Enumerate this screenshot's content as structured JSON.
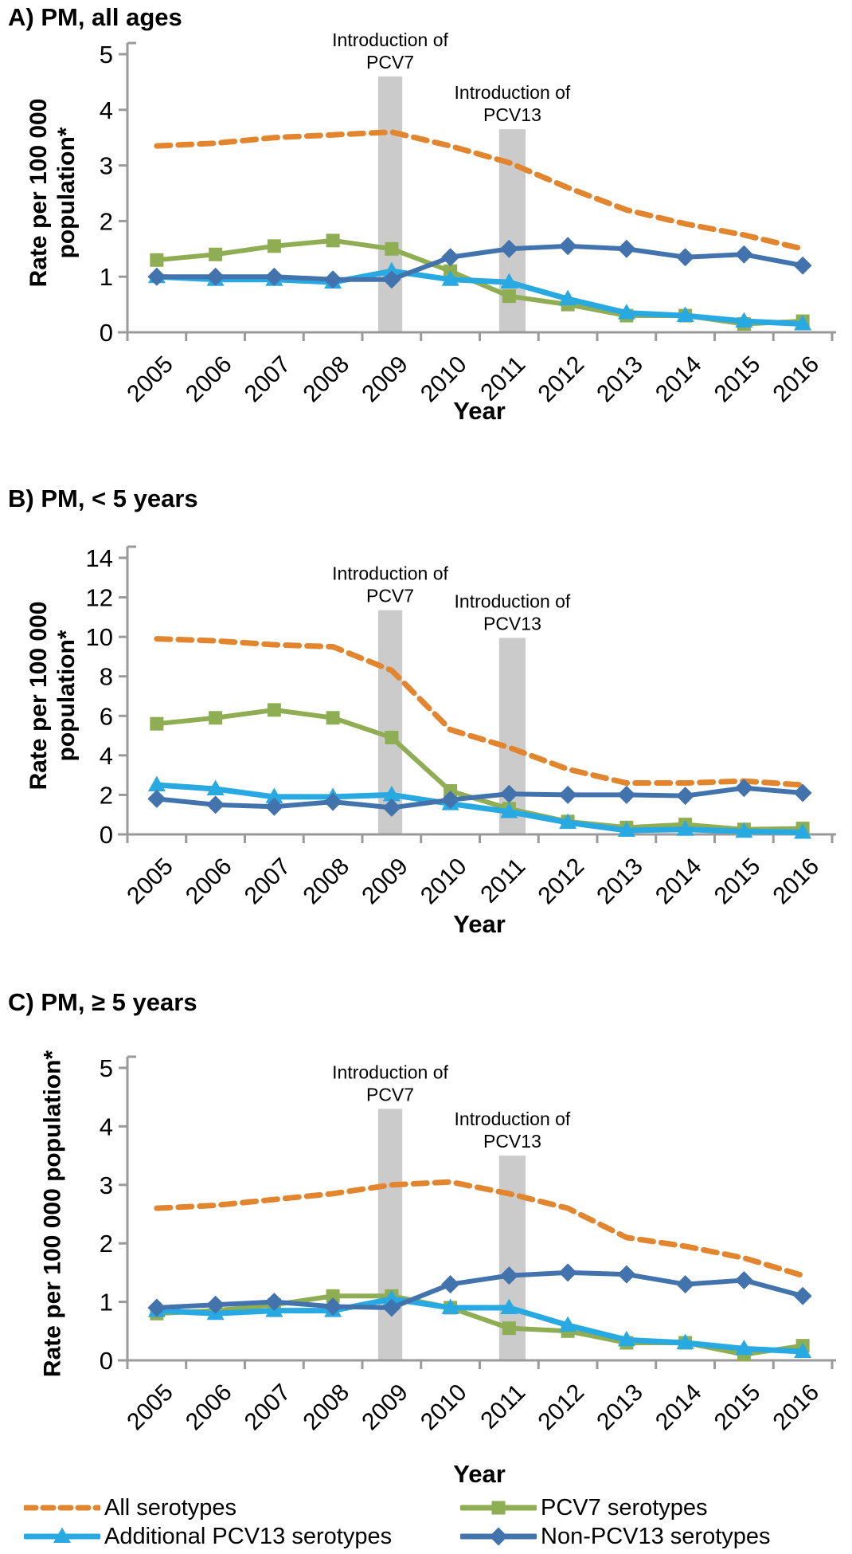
{
  "colors": {
    "all_serotypes": "#E2852F",
    "pcv7_serotypes": "#8FAE53",
    "additional_pcv13_serotypes": "#29A9E1",
    "non_pcv13_serotypes": "#4273AC",
    "annotation_bar": "#CBCBCB",
    "axis": "#9A9A9A",
    "text": "#000000"
  },
  "chart_data": [
    {
      "type": "line",
      "panel": "A",
      "title": "A) PM, all ages",
      "ylabel_lines": [
        "Rate per 100 000",
        "population*"
      ],
      "xlabel": "Year",
      "ylim": [
        0,
        5
      ],
      "yticks": [
        0,
        1,
        2,
        3,
        4,
        5
      ],
      "categories": [
        "2005",
        "2006",
        "2007",
        "2008",
        "2009",
        "2010",
        "2011",
        "2012",
        "2013",
        "2014",
        "2015",
        "2016"
      ],
      "annotations": [
        {
          "lines": [
            "Introduction of",
            "PCV7"
          ],
          "bar_from_idx": 3.77,
          "bar_to_idx": 4.18,
          "bar_top_value": 4.6
        },
        {
          "lines": [
            "Introduction of",
            "PCV13"
          ],
          "bar_from_idx": 5.83,
          "bar_to_idx": 6.28,
          "bar_top_value": 3.65
        }
      ],
      "series": [
        {
          "name": "All serotypes",
          "color": "#E2852F",
          "dashed": true,
          "marker": "none",
          "values": [
            3.35,
            3.4,
            3.5,
            3.55,
            3.6,
            3.35,
            3.05,
            2.6,
            2.2,
            1.95,
            1.75,
            1.5
          ]
        },
        {
          "name": "PCV7 serotypes",
          "color": "#8FAE53",
          "dashed": false,
          "marker": "square",
          "values": [
            1.3,
            1.4,
            1.55,
            1.65,
            1.5,
            1.1,
            0.65,
            0.5,
            0.3,
            0.3,
            0.15,
            0.2
          ]
        },
        {
          "name": "Additional PCV13 serotypes",
          "color": "#29A9E1",
          "dashed": false,
          "marker": "triangle",
          "values": [
            1.0,
            0.95,
            0.95,
            0.9,
            1.1,
            0.95,
            0.9,
            0.6,
            0.35,
            0.3,
            0.2,
            0.15
          ]
        },
        {
          "name": "Non-PCV13 serotypes",
          "color": "#4273AC",
          "dashed": false,
          "marker": "diamond",
          "values": [
            1.0,
            1.0,
            1.0,
            0.95,
            0.95,
            1.35,
            1.5,
            1.55,
            1.5,
            1.35,
            1.4,
            1.2
          ]
        }
      ]
    },
    {
      "type": "line",
      "panel": "B",
      "title": "B) PM, < 5 years",
      "ylabel_lines": [
        "Rate per 100 000",
        "population*"
      ],
      "xlabel": "Year",
      "ylim": [
        0,
        14
      ],
      "yticks": [
        0,
        2,
        4,
        6,
        8,
        10,
        12,
        14
      ],
      "categories": [
        "2005",
        "2006",
        "2007",
        "2008",
        "2009",
        "2010",
        "2011",
        "2012",
        "2013",
        "2014",
        "2015",
        "2016"
      ],
      "annotations": [
        {
          "lines": [
            "Introduction of",
            "PCV7"
          ],
          "bar_from_idx": 3.77,
          "bar_to_idx": 4.18,
          "bar_top_value": 11.35
        },
        {
          "lines": [
            "Introduction of",
            "PCV13"
          ],
          "bar_from_idx": 5.83,
          "bar_to_idx": 6.28,
          "bar_top_value": 9.95
        }
      ],
      "series": [
        {
          "name": "All serotypes",
          "color": "#E2852F",
          "dashed": true,
          "marker": "none",
          "values": [
            9.9,
            9.8,
            9.6,
            9.5,
            8.3,
            5.3,
            4.4,
            3.3,
            2.6,
            2.6,
            2.7,
            2.5
          ]
        },
        {
          "name": "PCV7 serotypes",
          "color": "#8FAE53",
          "dashed": false,
          "marker": "square",
          "values": [
            5.6,
            5.9,
            6.3,
            5.9,
            4.9,
            2.2,
            1.3,
            0.65,
            0.35,
            0.5,
            0.25,
            0.3
          ]
        },
        {
          "name": "Additional PCV13 serotypes",
          "color": "#29A9E1",
          "dashed": false,
          "marker": "triangle",
          "values": [
            2.5,
            2.3,
            1.9,
            1.9,
            2.0,
            1.55,
            1.15,
            0.6,
            0.2,
            0.25,
            0.15,
            0.1
          ]
        },
        {
          "name": "Non-PCV13 serotypes",
          "color": "#4273AC",
          "dashed": false,
          "marker": "diamond",
          "values": [
            1.8,
            1.5,
            1.4,
            1.65,
            1.35,
            1.75,
            2.05,
            2.0,
            2.0,
            1.95,
            2.35,
            2.1
          ]
        }
      ]
    },
    {
      "type": "line",
      "panel": "C",
      "title": "C) PM, ≥ 5 years",
      "ylabel_lines": [
        "Rate per 100 000 population*"
      ],
      "xlabel": "Year",
      "ylim": [
        0,
        5
      ],
      "yticks": [
        0,
        1,
        2,
        3,
        4,
        5
      ],
      "categories": [
        "2005",
        "2006",
        "2007",
        "2008",
        "2009",
        "2010",
        "2011",
        "2012",
        "2013",
        "2014",
        "2015",
        "2016"
      ],
      "annotations": [
        {
          "lines": [
            "Introduction of",
            "PCV7"
          ],
          "bar_from_idx": 3.77,
          "bar_to_idx": 4.18,
          "bar_top_value": 4.3
        },
        {
          "lines": [
            "Introduction of",
            "PCV13"
          ],
          "bar_from_idx": 5.83,
          "bar_to_idx": 6.28,
          "bar_top_value": 3.5
        }
      ],
      "series": [
        {
          "name": "All serotypes",
          "color": "#E2852F",
          "dashed": true,
          "marker": "none",
          "values": [
            2.6,
            2.65,
            2.75,
            2.85,
            3.0,
            3.05,
            2.85,
            2.6,
            2.1,
            1.95,
            1.75,
            1.45
          ]
        },
        {
          "name": "PCV7 serotypes",
          "color": "#8FAE53",
          "dashed": false,
          "marker": "square",
          "values": [
            0.8,
            0.85,
            0.95,
            1.1,
            1.1,
            0.9,
            0.55,
            0.5,
            0.3,
            0.3,
            0.1,
            0.25
          ]
        },
        {
          "name": "Additional PCV13 serotypes",
          "color": "#29A9E1",
          "dashed": false,
          "marker": "triangle",
          "values": [
            0.85,
            0.8,
            0.85,
            0.85,
            1.05,
            0.9,
            0.9,
            0.6,
            0.35,
            0.3,
            0.2,
            0.15
          ]
        },
        {
          "name": "Non-PCV13 serotypes",
          "color": "#4273AC",
          "dashed": false,
          "marker": "diamond",
          "values": [
            0.9,
            0.95,
            1.0,
            0.92,
            0.9,
            1.3,
            1.45,
            1.5,
            1.47,
            1.3,
            1.37,
            1.1
          ]
        }
      ]
    }
  ],
  "legend": {
    "items": [
      {
        "label": "All serotypes",
        "color": "#E2852F",
        "marker": "none",
        "dashed": true
      },
      {
        "label": "PCV7 serotypes",
        "color": "#8FAE53",
        "marker": "square",
        "dashed": false
      },
      {
        "label": "Additional PCV13 serotypes",
        "color": "#29A9E1",
        "marker": "triangle",
        "dashed": false
      },
      {
        "label": "Non-PCV13 serotypes",
        "color": "#4273AC",
        "marker": "diamond",
        "dashed": false
      }
    ]
  }
}
